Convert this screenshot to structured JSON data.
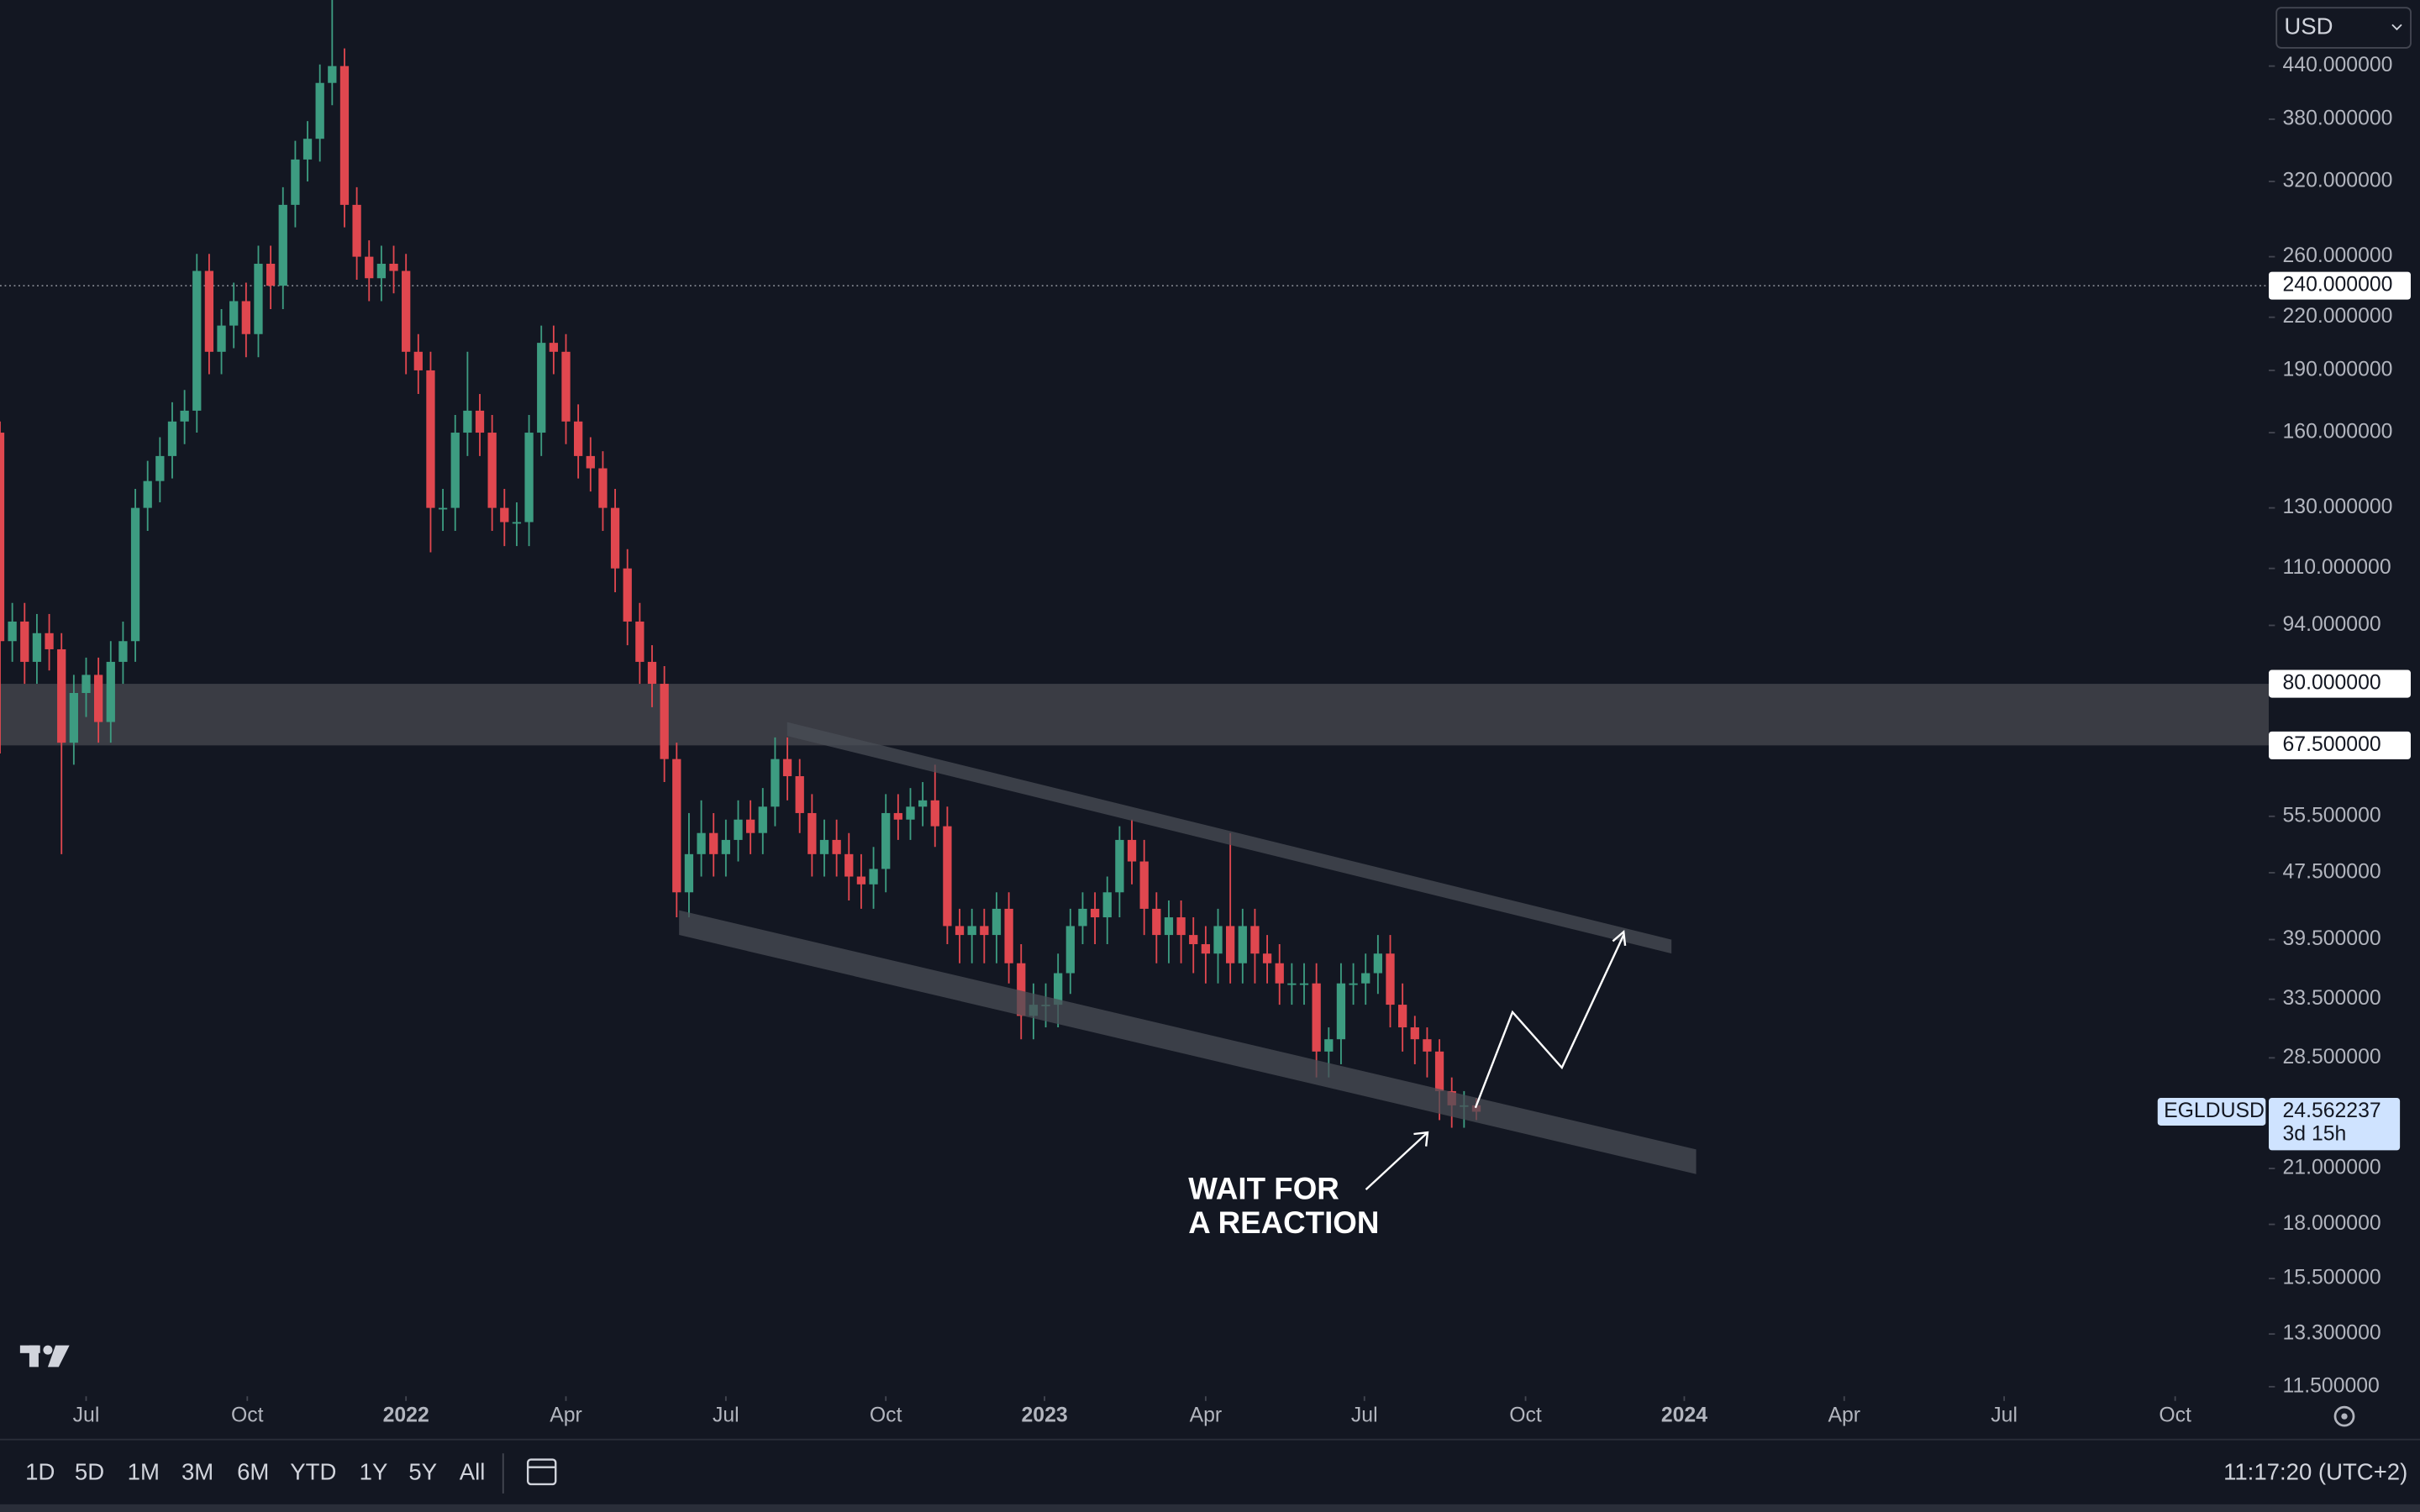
{
  "chart_data": {
    "type": "candlestick",
    "symbol": "EGLDUSD",
    "currency": "USD",
    "up_color": "#3d9c81",
    "down_color": "#e0474f",
    "log_scale": true,
    "grid": false,
    "open": [
      160,
      90,
      95,
      85,
      92,
      88,
      68,
      78,
      82,
      72,
      85,
      90,
      130,
      140,
      150,
      165,
      170,
      250,
      200,
      215,
      230,
      210,
      255,
      240,
      300,
      340,
      360,
      420,
      440,
      300,
      260,
      245,
      255,
      250,
      200,
      190,
      130,
      130,
      160,
      170,
      160,
      130,
      125,
      125,
      160,
      205,
      200,
      165,
      150,
      145,
      130,
      110,
      95,
      85,
      80,
      65,
      45,
      50,
      53,
      50,
      52,
      55,
      53,
      57,
      65,
      62,
      56,
      50,
      52,
      50,
      47,
      46,
      48,
      56,
      55,
      57,
      58,
      54,
      41,
      40,
      41,
      40,
      43,
      37,
      32,
      33,
      33,
      36,
      41,
      43,
      42,
      45,
      52,
      49,
      43,
      40,
      42,
      40,
      39,
      38,
      41,
      37,
      41,
      38,
      37,
      35,
      35,
      35,
      29,
      30,
      35,
      35,
      36,
      38,
      33,
      31,
      30,
      29,
      26,
      25,
      25
    ],
    "high": [
      165,
      100,
      100,
      97,
      97,
      92,
      82,
      86,
      86,
      90,
      95,
      137,
      148,
      158,
      174,
      180,
      262,
      262,
      225,
      242,
      242,
      268,
      268,
      315,
      358,
      378,
      442,
      530,
      462,
      315,
      272,
      268,
      268,
      262,
      210,
      200,
      137,
      168,
      200,
      178,
      168,
      137,
      132,
      168,
      215,
      215,
      210,
      173,
      158,
      152,
      137,
      116,
      100,
      89,
      84,
      68,
      56,
      58,
      56,
      55,
      58,
      58,
      60,
      69,
      69,
      65,
      59,
      55,
      55,
      53,
      50,
      51,
      59,
      59,
      60,
      61,
      64,
      57,
      43,
      43,
      43,
      45,
      45,
      39,
      35,
      35,
      38,
      43,
      45,
      45,
      47,
      54,
      55,
      52,
      45,
      44,
      44,
      42,
      41,
      43,
      53,
      43,
      43,
      40,
      39,
      37,
      37,
      37,
      31,
      37,
      37,
      38,
      40,
      40,
      35,
      32,
      31,
      30,
      27,
      26,
      25.5
    ],
    "low": [
      66,
      85,
      80,
      80,
      83,
      50,
      64,
      73,
      68,
      68,
      80,
      85,
      122,
      132,
      141,
      155,
      160,
      188,
      188,
      202,
      197,
      197,
      225,
      225,
      282,
      320,
      338,
      395,
      282,
      244,
      230,
      230,
      235,
      188,
      178,
      115,
      122,
      122,
      150,
      150,
      122,
      117,
      117,
      117,
      150,
      188,
      155,
      141,
      136,
      122,
      103,
      89,
      80,
      75,
      61,
      42,
      42,
      47,
      47,
      47,
      49,
      50,
      50,
      54,
      58,
      53,
      47,
      47,
      47,
      44,
      43,
      43,
      45,
      52,
      52,
      54,
      51,
      39,
      37,
      37,
      37,
      37,
      35,
      30,
      30,
      31,
      31,
      34,
      39,
      39,
      39,
      42,
      46,
      40,
      37,
      37,
      37,
      36,
      35,
      35,
      35,
      35,
      35,
      35,
      33,
      33,
      33,
      27,
      27,
      28,
      33,
      33,
      34,
      31,
      29,
      28,
      27,
      24,
      23.5,
      23.5,
      24
    ],
    "close": [
      90,
      95,
      85,
      92,
      88,
      68,
      78,
      82,
      72,
      85,
      90,
      130,
      140,
      150,
      165,
      170,
      250,
      200,
      215,
      230,
      210,
      255,
      240,
      300,
      340,
      360,
      420,
      440,
      300,
      260,
      245,
      255,
      250,
      200,
      190,
      130,
      130,
      160,
      170,
      160,
      130,
      125,
      125,
      160,
      205,
      200,
      165,
      150,
      145,
      130,
      110,
      95,
      85,
      80,
      65,
      45,
      50,
      53,
      50,
      52,
      55,
      53,
      57,
      65,
      62,
      56,
      50,
      52,
      50,
      47,
      46,
      48,
      56,
      55,
      57,
      58,
      54,
      41,
      40,
      41,
      40,
      43,
      37,
      32,
      33,
      33,
      36,
      41,
      43,
      42,
      45,
      52,
      49,
      43,
      40,
      42,
      40,
      39,
      38,
      41,
      37,
      41,
      38,
      37,
      35,
      35,
      35,
      29,
      30,
      35,
      35,
      36,
      38,
      33,
      31,
      30,
      29,
      26,
      25,
      25,
      24.562237
    ],
    "countdown": "3d 15h",
    "xlim": [
      0,
      196.7
    ],
    "xticks": [
      {
        "value": 7.0,
        "label": "Jul"
      },
      {
        "value": 20.1,
        "label": "Oct"
      },
      {
        "value": 33.0,
        "label": "2022"
      },
      {
        "value": 46.0,
        "label": "Apr"
      },
      {
        "value": 59.0,
        "label": "Jul"
      },
      {
        "value": 72.0,
        "label": "Oct"
      },
      {
        "value": 84.9,
        "label": "2023"
      },
      {
        "value": 98.0,
        "label": "Apr"
      },
      {
        "value": 110.9,
        "label": "Jul"
      },
      {
        "value": 124.0,
        "label": "Oct"
      },
      {
        "value": 136.9,
        "label": "2024"
      },
      {
        "value": 149.9,
        "label": "Apr"
      },
      {
        "value": 162.9,
        "label": "Jul"
      },
      {
        "value": 176.8,
        "label": "Oct"
      }
    ],
    "ylim": [
      11.2,
      528
    ],
    "yticks": [
      {
        "value": 440,
        "label": "440.000000"
      },
      {
        "value": 380,
        "label": "380.000000"
      },
      {
        "value": 320,
        "label": "320.000000"
      },
      {
        "value": 260,
        "label": "260.000000"
      },
      {
        "value": 220,
        "label": "220.000000"
      },
      {
        "value": 190,
        "label": "190.000000"
      },
      {
        "value": 160,
        "label": "160.000000"
      },
      {
        "value": 130,
        "label": "130.000000"
      },
      {
        "value": 110,
        "label": "110.000000"
      },
      {
        "value": 94,
        "label": "94.000000"
      },
      {
        "value": 55.5,
        "label": "55.500000"
      },
      {
        "value": 47.5,
        "label": "47.500000"
      },
      {
        "value": 39.5,
        "label": "39.500000"
      },
      {
        "value": 33.5,
        "label": "33.500000"
      },
      {
        "value": 28.5,
        "label": "28.500000"
      },
      {
        "value": 21,
        "label": "21.000000"
      },
      {
        "value": 18,
        "label": "18.000000"
      },
      {
        "value": 15.5,
        "label": "15.500000"
      },
      {
        "value": 13.3,
        "label": "13.300000"
      },
      {
        "value": 11.5,
        "label": "11.500000"
      }
    ],
    "price_line": {
      "value": 240,
      "label": "240.000000"
    },
    "zone": {
      "top": {
        "value": 80,
        "label": "80.000000"
      },
      "bottom": {
        "value": 67.5,
        "label": "67.500000"
      }
    },
    "annotation": [
      "WAIT FOR",
      "A REACTION"
    ]
  },
  "toolbar": {
    "ranges": [
      "1D",
      "5D",
      "1M",
      "3M",
      "6M",
      "YTD",
      "1Y",
      "5Y",
      "All"
    ],
    "clock": "11:17:20 (UTC+2)"
  }
}
